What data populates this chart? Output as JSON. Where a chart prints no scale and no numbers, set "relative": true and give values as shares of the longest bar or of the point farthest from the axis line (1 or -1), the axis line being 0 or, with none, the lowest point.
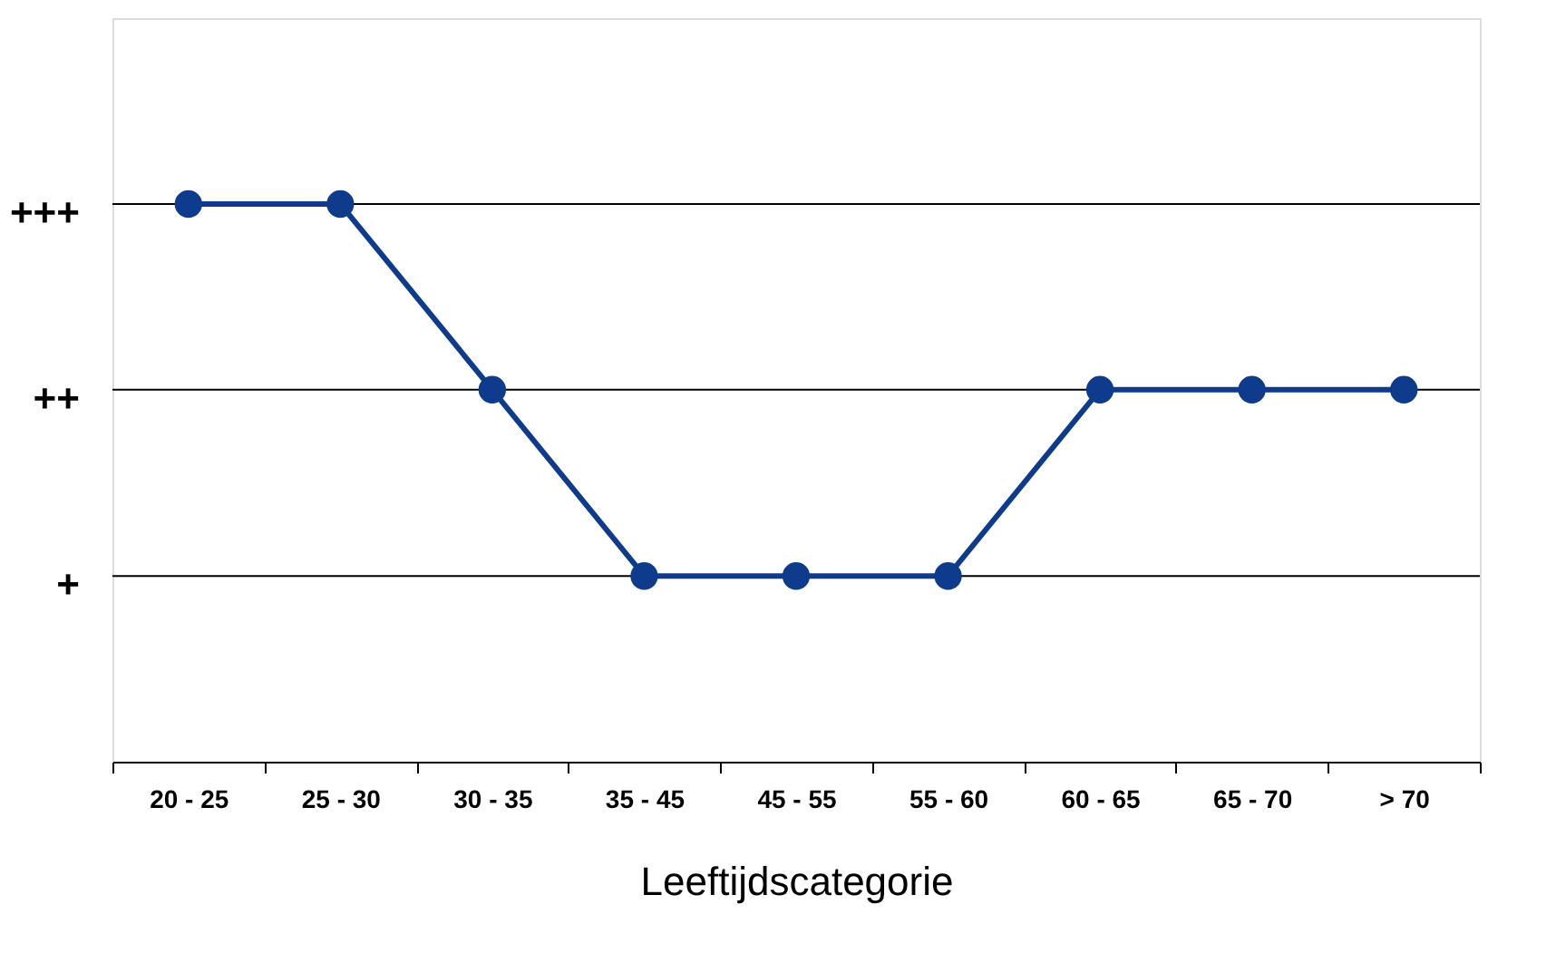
{
  "chart_data": {
    "type": "line",
    "xlabel": "Leeftijdscategorie",
    "relative": true,
    "categories": [
      "20 - 25",
      "25 - 30",
      "30 - 35",
      "35 - 45",
      "45 - 55",
      "55 - 60",
      "60 - 65",
      "65 - 70",
      "> 70"
    ],
    "series": [
      {
        "color": "#0f3b8c",
        "values": [
          1,
          1,
          0.667,
          0.333,
          0.333,
          0.333,
          0.667,
          0.667,
          0.667
        ]
      }
    ],
    "ref_lines": [
      {
        "axis": "y",
        "value": 0.333,
        "label": "+",
        "color": "#000000",
        "line_style": "solid"
      },
      {
        "axis": "y",
        "value": 0.667,
        "label": "++",
        "color": "#000000",
        "line_style": "solid"
      },
      {
        "axis": "y",
        "value": 1,
        "label": "+++",
        "color": "#000000",
        "line_style": "solid"
      }
    ],
    "marker": "circle",
    "line_style": "solid"
  }
}
